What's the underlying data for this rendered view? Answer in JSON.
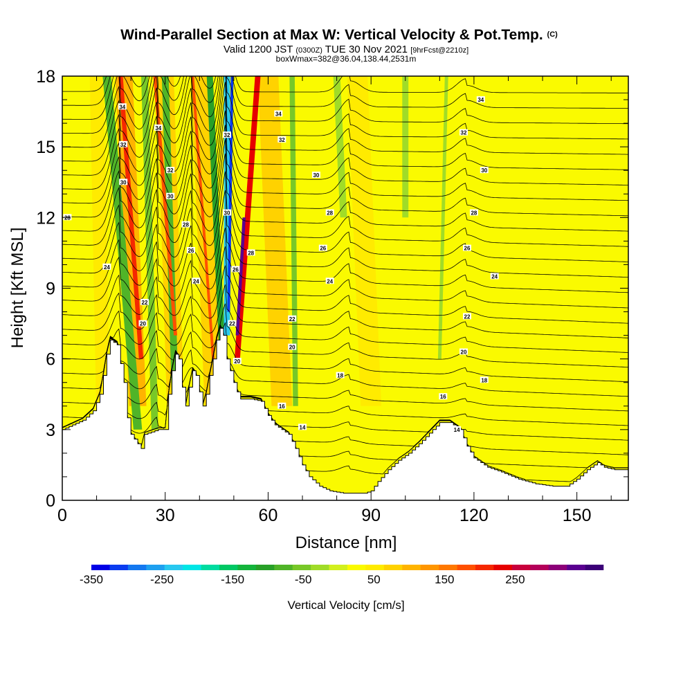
{
  "title": {
    "main": "Wind-Parallel Section at Max W: Vertical Velocity & Pot.Temp.",
    "main_mark": "(C)",
    "line2_a": "Valid 1200 JST",
    "line2_b": "(0300Z)",
    "line2_c": "TUE 30 Nov 2021",
    "line2_d": "[9hrFcst@2210z]",
    "line3": "boxWmax=382@36.04,138.44,2531m"
  },
  "chart_data": {
    "type": "heatmap",
    "xlabel": "Distance [nm]",
    "ylabel": "Height [Kft MSL]",
    "xlim": [
      0,
      165
    ],
    "ylim": [
      0,
      18
    ],
    "xticks": [
      0,
      30,
      60,
      90,
      120,
      150
    ],
    "yticks": [
      0,
      3,
      6,
      9,
      12,
      15,
      18
    ],
    "xtick_labels": [
      "0",
      "30",
      "60",
      "90",
      "120",
      "150"
    ],
    "ytick_labels": [
      "0",
      "3",
      "6",
      "9",
      "12",
      "15",
      "18"
    ],
    "colorbar": {
      "label": "Vertical Velocity [cm/s]",
      "min": -350,
      "max": 350,
      "step": 25,
      "tick_values": [
        -350,
        -250,
        -150,
        -50,
        50,
        150,
        250
      ],
      "tick_labels": [
        "-350",
        "-250",
        "-150",
        "-50",
        "50",
        "150",
        "250"
      ],
      "colors": [
        "#0000e6",
        "#0a3cf0",
        "#1478f0",
        "#1ea0f0",
        "#28c8f0",
        "#00e6e6",
        "#00dca0",
        "#00c864",
        "#14b43c",
        "#28a028",
        "#50b428",
        "#78c828",
        "#a0dc28",
        "#d2f01e",
        "#fafa00",
        "#ffeb00",
        "#ffd200",
        "#ffb400",
        "#ff9600",
        "#ff7800",
        "#ff5000",
        "#f52800",
        "#e60000",
        "#c8003c",
        "#b4005a",
        "#8c0078",
        "#5a0090",
        "#3c0078"
      ]
    },
    "terrain_kft": [
      [
        0,
        3.0
      ],
      [
        3,
        3.2
      ],
      [
        6,
        3.4
      ],
      [
        9,
        3.8
      ],
      [
        11,
        4.5
      ],
      [
        12,
        5.3
      ],
      [
        13,
        6.2
      ],
      [
        14,
        6.8
      ],
      [
        16,
        6.6
      ],
      [
        18,
        5.0
      ],
      [
        19,
        3.5
      ],
      [
        20,
        2.8
      ],
      [
        21,
        2.6
      ],
      [
        22,
        2.4
      ],
      [
        23,
        2.2
      ],
      [
        24,
        2.8
      ],
      [
        26,
        2.9
      ],
      [
        28,
        3.0
      ],
      [
        30,
        3.0
      ],
      [
        31,
        4.5
      ],
      [
        32,
        5.5
      ],
      [
        33,
        6.2
      ],
      [
        34,
        6.0
      ],
      [
        35,
        4.8
      ],
      [
        36,
        4.0
      ],
      [
        37,
        4.8
      ],
      [
        38,
        5.5
      ],
      [
        39,
        5.3
      ],
      [
        40,
        4.6
      ],
      [
        41,
        4.0
      ],
      [
        42,
        4.5
      ],
      [
        43,
        5.3
      ],
      [
        44,
        6.0
      ],
      [
        45,
        6.8
      ],
      [
        46,
        7.3
      ],
      [
        47,
        7.0
      ],
      [
        48,
        6.0
      ],
      [
        49,
        5.5
      ],
      [
        50,
        5.0
      ],
      [
        51,
        4.6
      ],
      [
        52,
        4.3
      ],
      [
        55,
        4.3
      ],
      [
        58,
        4.2
      ],
      [
        60,
        3.6
      ],
      [
        62,
        3.2
      ],
      [
        64,
        3.0
      ],
      [
        66,
        2.8
      ],
      [
        68,
        2.2
      ],
      [
        70,
        1.5
      ],
      [
        72,
        1.0
      ],
      [
        75,
        0.6
      ],
      [
        78,
        0.4
      ],
      [
        82,
        0.3
      ],
      [
        86,
        0.3
      ],
      [
        88,
        0.3
      ],
      [
        90,
        0.4
      ],
      [
        92,
        0.8
      ],
      [
        95,
        1.3
      ],
      [
        98,
        1.7
      ],
      [
        101,
        2.0
      ],
      [
        104,
        2.4
      ],
      [
        106,
        2.7
      ],
      [
        108,
        3.0
      ],
      [
        110,
        3.3
      ],
      [
        113,
        3.3
      ],
      [
        116,
        3.0
      ],
      [
        118,
        2.3
      ],
      [
        120,
        1.8
      ],
      [
        124,
        1.4
      ],
      [
        128,
        1.2
      ],
      [
        133,
        0.9
      ],
      [
        138,
        0.7
      ],
      [
        143,
        0.6
      ],
      [
        147,
        0.6
      ],
      [
        150,
        0.9
      ],
      [
        153,
        1.3
      ],
      [
        156,
        1.6
      ],
      [
        158,
        1.4
      ],
      [
        161,
        1.3
      ],
      [
        165,
        1.3
      ]
    ],
    "theta_contour_labels": [
      {
        "x": 17.5,
        "y": 16.7,
        "label": "34"
      },
      {
        "x": 17.8,
        "y": 15.1,
        "label": "32"
      },
      {
        "x": 17.8,
        "y": 13.5,
        "label": "30"
      },
      {
        "x": 28,
        "y": 15.8,
        "label": "34"
      },
      {
        "x": 31.5,
        "y": 14.0,
        "label": "32"
      },
      {
        "x": 31.5,
        "y": 12.9,
        "label": "30"
      },
      {
        "x": 36,
        "y": 11.7,
        "label": "28"
      },
      {
        "x": 37.5,
        "y": 10.6,
        "label": "26"
      },
      {
        "x": 39,
        "y": 9.3,
        "label": "24"
      },
      {
        "x": 13,
        "y": 9.9,
        "label": "24"
      },
      {
        "x": 24,
        "y": 8.4,
        "label": "22"
      },
      {
        "x": 23.5,
        "y": 7.5,
        "label": "20"
      },
      {
        "x": 48,
        "y": 15.5,
        "label": "32"
      },
      {
        "x": 48,
        "y": 12.2,
        "label": "30"
      },
      {
        "x": 50.5,
        "y": 9.8,
        "label": "26"
      },
      {
        "x": 55,
        "y": 10.5,
        "label": "28"
      },
      {
        "x": 49.5,
        "y": 7.5,
        "label": "22"
      },
      {
        "x": 51,
        "y": 5.9,
        "label": "20"
      },
      {
        "x": 63,
        "y": 16.4,
        "label": "34"
      },
      {
        "x": 64,
        "y": 15.3,
        "label": "32"
      },
      {
        "x": 74,
        "y": 13.8,
        "label": "30"
      },
      {
        "x": 78,
        "y": 12.2,
        "label": "28"
      },
      {
        "x": 76,
        "y": 10.7,
        "label": "26"
      },
      {
        "x": 78,
        "y": 9.3,
        "label": "24"
      },
      {
        "x": 67,
        "y": 7.7,
        "label": "22"
      },
      {
        "x": 67,
        "y": 6.5,
        "label": "20"
      },
      {
        "x": 81,
        "y": 5.3,
        "label": "18"
      },
      {
        "x": 64,
        "y": 4.0,
        "label": "16"
      },
      {
        "x": 70,
        "y": 3.1,
        "label": "14"
      },
      {
        "x": 122,
        "y": 17.0,
        "label": "34"
      },
      {
        "x": 117,
        "y": 15.6,
        "label": "32"
      },
      {
        "x": 123,
        "y": 14.0,
        "label": "30"
      },
      {
        "x": 120,
        "y": 12.2,
        "label": "28"
      },
      {
        "x": 118,
        "y": 10.7,
        "label": "26"
      },
      {
        "x": 126,
        "y": 9.5,
        "label": "24"
      },
      {
        "x": 118,
        "y": 7.8,
        "label": "22"
      },
      {
        "x": 117,
        "y": 6.3,
        "label": "20"
      },
      {
        "x": 123,
        "y": 5.1,
        "label": "18"
      },
      {
        "x": 111,
        "y": 4.4,
        "label": "16"
      },
      {
        "x": 115,
        "y": 3.0,
        "label": "14"
      },
      {
        "x": 1.5,
        "y": 12.0,
        "label": "28"
      }
    ]
  }
}
